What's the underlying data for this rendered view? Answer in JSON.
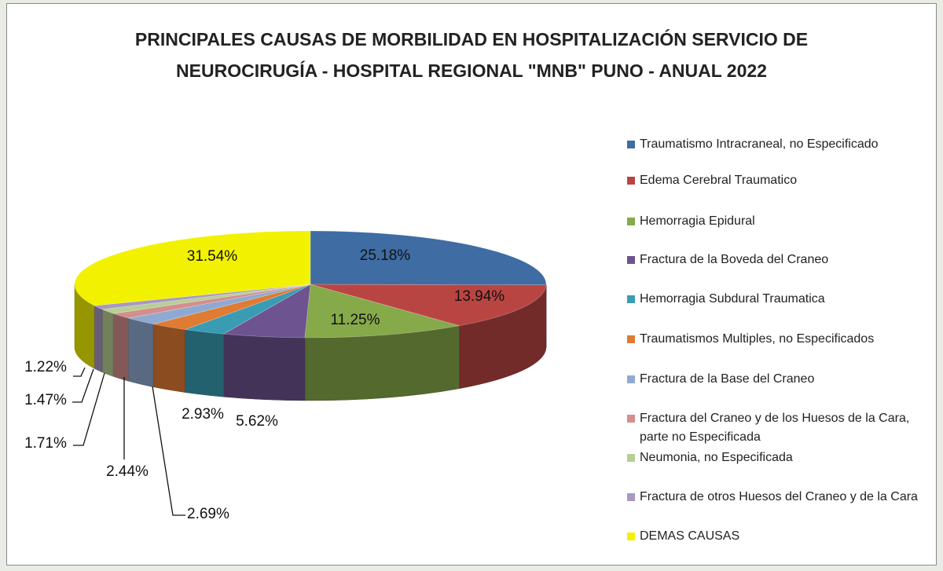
{
  "chart_data": {
    "type": "pie3d",
    "title": "PRINCIPALES CAUSAS DE MORBILIDAD EN HOSPITALIZACIÓN SERVICIO DE NEUROCIRUGÍA - HOSPITAL REGIONAL \"MNB\" PUNO - ANUAL 2022",
    "categories": [
      "Traumatismo Intracraneal, no Especificado",
      "Edema Cerebral Traumatico",
      "Hemorragia Epidural",
      "Fractura de la Boveda del Craneo",
      "Hemorragia Subdural Traumatica",
      "Traumatismos Multiples, no Especificados",
      "Fractura de la Base del Craneo",
      "Fractura del Craneo y de los Huesos de la Cara, parte no Especificada",
      "Neumonia, no Especificada",
      "Fractura de otros Huesos del Craneo y de la Cara",
      "DEMAS CAUSAS"
    ],
    "values": [
      25.18,
      13.94,
      11.25,
      5.62,
      2.93,
      2.69,
      2.44,
      1.71,
      1.47,
      1.22,
      31.54
    ],
    "value_labels": [
      "25.18%",
      "13.94%",
      "11.25%",
      "5.62%",
      "2.93%",
      "2.69%",
      "2.44%",
      "1.71%",
      "1.47%",
      "1.22%",
      "31.54%"
    ],
    "colors": [
      "#3e6ca3",
      "#b94543",
      "#86a94a",
      "#6d5390",
      "#3a9cb3",
      "#e07b33",
      "#8faad2",
      "#d38f8d",
      "#b8cf93",
      "#a898c4",
      "#f2f200"
    ],
    "legend": "right"
  }
}
